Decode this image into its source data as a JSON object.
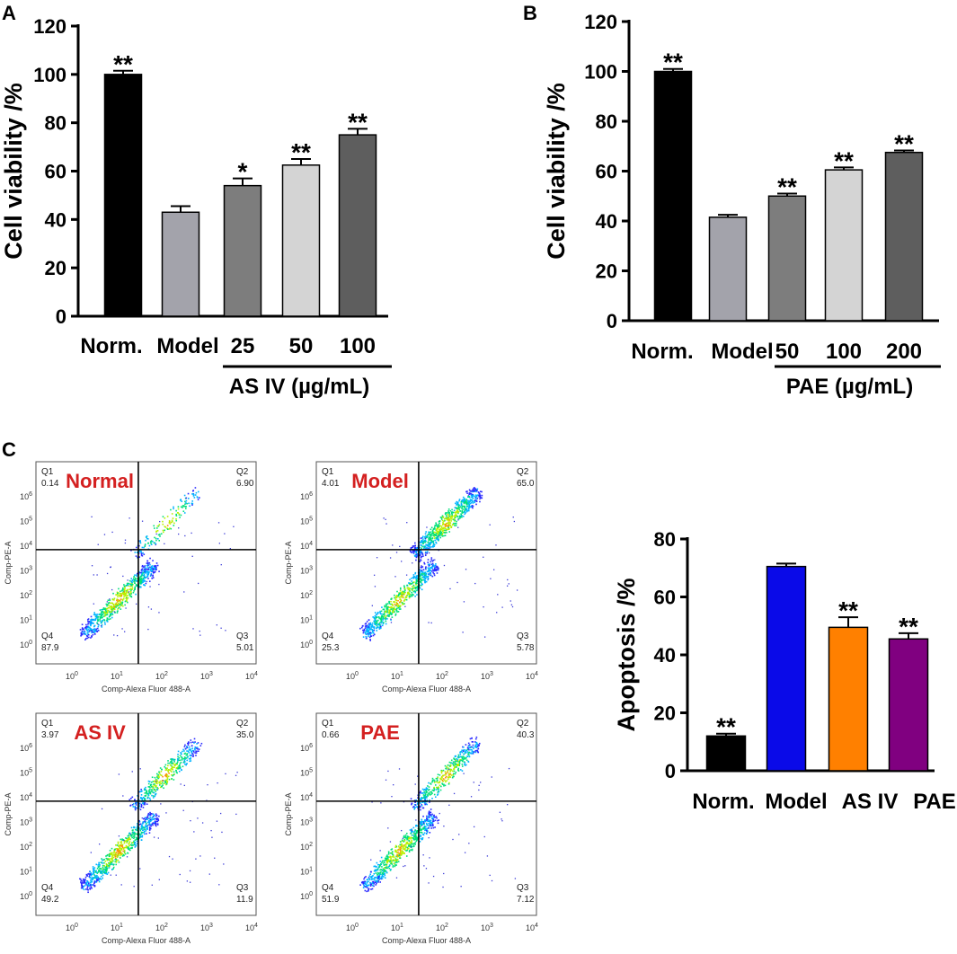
{
  "panel_labels": {
    "a": "A",
    "b": "B",
    "c": "C"
  },
  "chart_data": [
    {
      "id": "A",
      "type": "bar",
      "title": "",
      "ylabel": "Cell viability /%",
      "ylim": [
        0,
        120
      ],
      "yticks": [
        0,
        20,
        40,
        60,
        80,
        100,
        120
      ],
      "categories": [
        "Norm.",
        "Model",
        "25",
        "50",
        "100"
      ],
      "values": [
        100,
        43,
        54,
        62.5,
        75
      ],
      "errors": [
        1.5,
        2.5,
        3,
        2.5,
        2.5
      ],
      "colors": [
        "#000000",
        "#a3a3ab",
        "#7d7d7d",
        "#d4d4d4",
        "#5e5e5e"
      ],
      "significance": [
        "**",
        "",
        "*",
        "**",
        "**"
      ],
      "group_label": "AS IV (µg/mL)"
    },
    {
      "id": "B",
      "type": "bar",
      "title": "",
      "ylabel": "Cell viability /%",
      "ylim": [
        0,
        120
      ],
      "yticks": [
        0,
        20,
        40,
        60,
        80,
        100,
        120
      ],
      "categories": [
        "Norm.",
        "Model",
        "50",
        "100",
        "200"
      ],
      "values": [
        100,
        41.5,
        50,
        60.5,
        67.5
      ],
      "errors": [
        1,
        1,
        1,
        1,
        0.8
      ],
      "colors": [
        "#000000",
        "#a3a3ab",
        "#7d7d7d",
        "#d4d4d4",
        "#5e5e5e"
      ],
      "significance": [
        "**",
        "",
        "**",
        "**",
        "**"
      ],
      "group_label": "PAE (µg/mL)"
    },
    {
      "id": "C-bar",
      "type": "bar",
      "title": "",
      "ylabel": "Apoptosis /%",
      "ylim": [
        0,
        80
      ],
      "yticks": [
        0,
        20,
        40,
        60,
        80
      ],
      "categories": [
        "Norm.",
        "Model",
        "AS IV",
        "PAE"
      ],
      "values": [
        12,
        70.5,
        49.5,
        45.5
      ],
      "errors": [
        0.8,
        1,
        3.5,
        2
      ],
      "colors": [
        "#000000",
        "#0a0ae8",
        "#ff8000",
        "#800080"
      ],
      "significance": [
        "**",
        "",
        "**",
        "**"
      ]
    },
    {
      "id": "C-flow",
      "type": "scatter",
      "xlabel": "Comp-Alexa Fluor 488-A",
      "ylabel": "Comp-PE-A",
      "axis_ticks": {
        "mantissa": "10",
        "exponents": [
          "0",
          "1",
          "2",
          "3",
          "4"
        ],
        "y_exponents": [
          "0",
          "1",
          "2",
          "3",
          "4",
          "5",
          "6"
        ]
      },
      "quadrant_names": [
        "Q1",
        "Q2",
        "Q3",
        "Q4"
      ],
      "plots": [
        {
          "title": "Normal",
          "Q1": "0.14",
          "Q2": "6.90",
          "Q3": "5.01",
          "Q4": "87.9"
        },
        {
          "title": "Model",
          "Q1": "4.01",
          "Q2": "65.0",
          "Q3": "5.78",
          "Q4": "25.3"
        },
        {
          "title": "AS IV",
          "Q1": "3.97",
          "Q2": "35.0",
          "Q3": "11.9",
          "Q4": "49.2"
        },
        {
          "title": "PAE",
          "Q1": "0.66",
          "Q2": "40.3",
          "Q3": "7.12",
          "Q4": "51.9"
        }
      ]
    }
  ]
}
